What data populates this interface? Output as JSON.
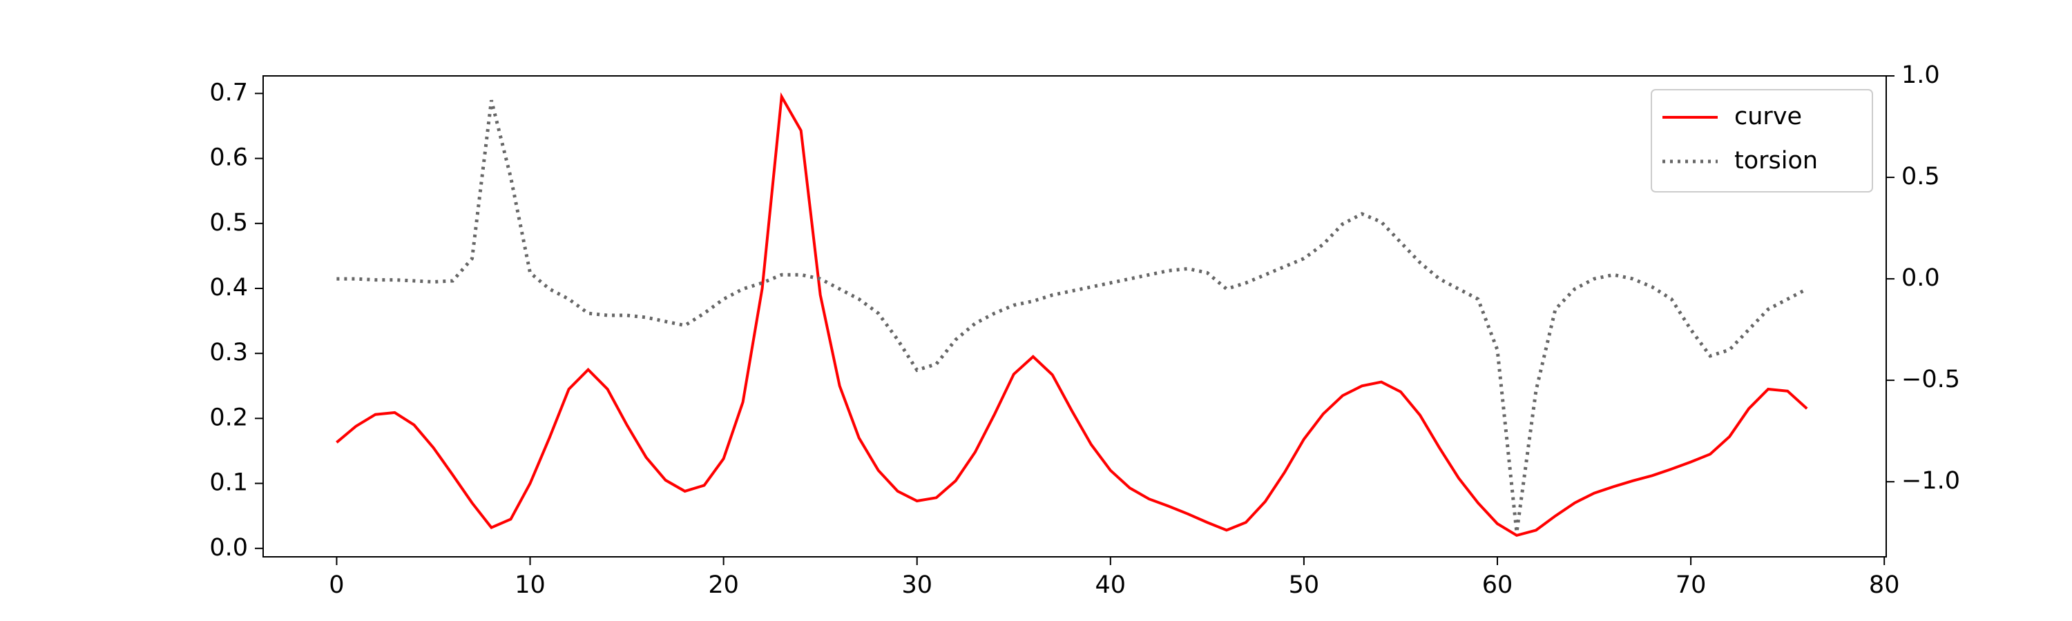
{
  "chart_data": {
    "type": "line",
    "x": [
      0,
      1,
      2,
      3,
      4,
      5,
      6,
      7,
      8,
      9,
      10,
      11,
      12,
      13,
      14,
      15,
      16,
      17,
      18,
      19,
      20,
      21,
      22,
      23,
      24,
      25,
      26,
      27,
      28,
      29,
      30,
      31,
      32,
      33,
      34,
      35,
      36,
      37,
      38,
      39,
      40,
      41,
      42,
      43,
      44,
      45,
      46,
      47,
      48,
      49,
      50,
      51,
      52,
      53,
      54,
      55,
      56,
      57,
      58,
      59,
      60,
      61,
      62,
      63,
      64,
      65,
      66,
      67,
      68,
      69,
      70,
      71,
      72,
      73,
      74,
      75,
      76
    ],
    "series": [
      {
        "name": "curve",
        "color": "#ff0000",
        "style": "solid",
        "values": [
          0.163,
          0.188,
          0.206,
          0.209,
          0.19,
          0.155,
          0.113,
          0.07,
          0.032,
          0.045,
          0.1,
          0.17,
          0.245,
          0.275,
          0.245,
          0.19,
          0.14,
          0.105,
          0.088,
          0.097,
          0.138,
          0.225,
          0.4,
          0.695,
          0.643,
          0.39,
          0.25,
          0.17,
          0.12,
          0.088,
          0.073,
          0.078,
          0.104,
          0.148,
          0.206,
          0.268,
          0.295,
          0.267,
          0.212,
          0.16,
          0.12,
          0.093,
          0.076,
          0.065,
          0.053,
          0.04,
          0.028,
          0.04,
          0.072,
          0.117,
          0.168,
          0.207,
          0.235,
          0.25,
          0.256,
          0.241,
          0.205,
          0.155,
          0.108,
          0.07,
          0.038,
          0.02,
          0.028,
          0.05,
          0.07,
          0.085,
          0.095,
          0.104,
          0.112,
          0.122,
          0.133,
          0.145,
          0.172,
          0.215,
          0.245,
          0.242,
          0.215
        ]
      },
      {
        "name": "torsion",
        "color": "#666666",
        "style": "dotted",
        "axis": "y2",
        "values": [
          0.0,
          0.0,
          -0.005,
          -0.005,
          -0.01,
          -0.015,
          -0.01,
          0.1,
          0.88,
          0.5,
          0.03,
          -0.05,
          -0.1,
          -0.17,
          -0.18,
          -0.18,
          -0.19,
          -0.21,
          -0.23,
          -0.17,
          -0.1,
          -0.05,
          -0.02,
          0.02,
          0.02,
          0.0,
          -0.05,
          -0.1,
          -0.17,
          -0.3,
          -0.45,
          -0.42,
          -0.3,
          -0.22,
          -0.17,
          -0.13,
          -0.11,
          -0.08,
          -0.06,
          -0.04,
          -0.02,
          0.0,
          0.02,
          0.04,
          0.05,
          0.03,
          -0.05,
          -0.02,
          0.02,
          0.06,
          0.1,
          0.17,
          0.27,
          0.32,
          0.28,
          0.18,
          0.08,
          0.0,
          -0.05,
          -0.1,
          -0.35,
          -1.25,
          -0.55,
          -0.15,
          -0.05,
          0.0,
          0.02,
          0.0,
          -0.04,
          -0.1,
          -0.25,
          -0.38,
          -0.35,
          -0.25,
          -0.15,
          -0.1,
          -0.05
        ]
      }
    ],
    "xlim": [
      -3.8,
      80.1
    ],
    "xticks": [
      0,
      10,
      20,
      30,
      40,
      50,
      60,
      70,
      80
    ],
    "ylim": [
      -0.013,
      0.727
    ],
    "yticks": [
      {
        "value": 0,
        "label": "0.0"
      },
      0.1,
      0.2,
      0.3,
      0.4,
      0.5,
      0.6,
      0.7
    ],
    "y2lim": [
      -1.37,
      1.0
    ],
    "y2ticks": [
      {
        "value": -1,
        "label": "−1.0"
      },
      {
        "value": -0.5,
        "label": "−0.5"
      },
      {
        "value": 0,
        "label": "0.0"
      },
      0.5,
      {
        "value": 1,
        "label": "1.0"
      }
    ],
    "legend": "upper right",
    "grid": false
  }
}
